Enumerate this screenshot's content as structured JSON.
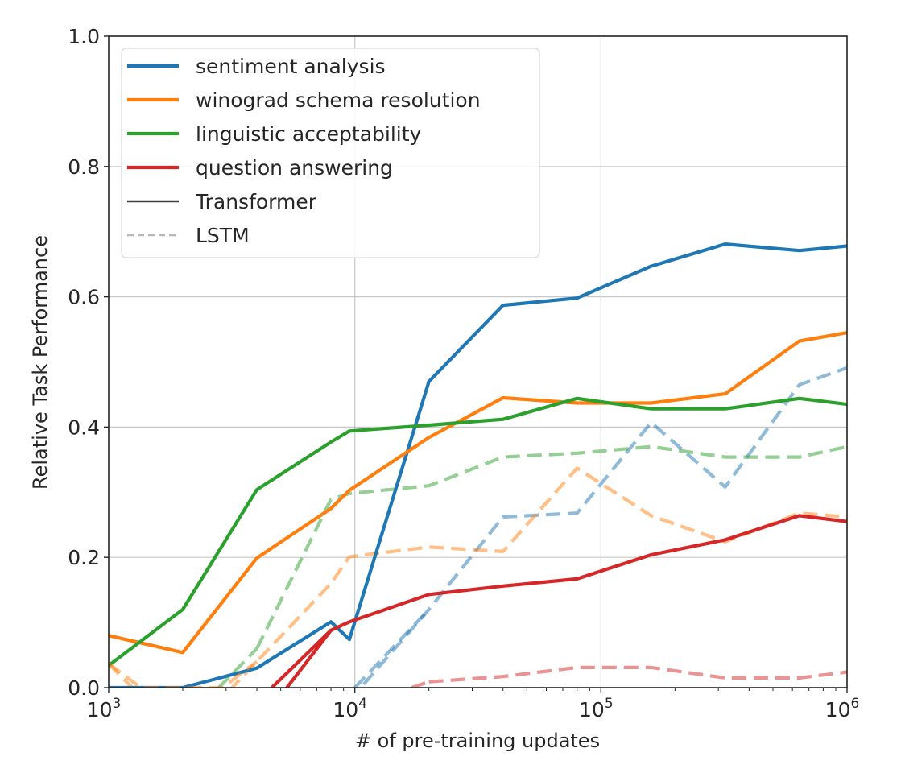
{
  "chart_data": {
    "type": "line",
    "title": "",
    "xlabel": "# of pre-training updates",
    "ylabel": "Relative Task Performance",
    "xscale": "log",
    "xlim": [
      1000,
      1000000
    ],
    "ylim": [
      0.0,
      1.0
    ],
    "grid": true,
    "legend_position": "upper left",
    "x_ticks": [
      {
        "value": 1000,
        "base": "10",
        "exp": "3"
      },
      {
        "value": 10000,
        "base": "10",
        "exp": "4"
      },
      {
        "value": 100000,
        "base": "10",
        "exp": "5"
      },
      {
        "value": 1000000,
        "base": "10",
        "exp": "6"
      }
    ],
    "y_ticks": [
      {
        "value": 0.0,
        "label": "0.0"
      },
      {
        "value": 0.2,
        "label": "0.2"
      },
      {
        "value": 0.4,
        "label": "0.4"
      },
      {
        "value": 0.6,
        "label": "0.6"
      },
      {
        "value": 0.8,
        "label": "0.8"
      },
      {
        "value": 1.0,
        "label": "1.0"
      }
    ],
    "x": [
      1000,
      2000,
      4000,
      8000,
      9500,
      20000,
      40000,
      80000,
      160000,
      320000,
      640000,
      1000000
    ],
    "series": [
      {
        "name": "sentiment analysis",
        "model": "Transformer",
        "color": "#1f77b4",
        "style": "solid",
        "values": [
          0.0,
          0.0,
          0.03,
          0.101,
          0.074,
          0.47,
          0.587,
          0.598,
          0.647,
          0.681,
          0.671,
          0.678
        ]
      },
      {
        "name": "winograd schema resolution",
        "model": "Transformer",
        "color": "#ff7f0e",
        "style": "solid",
        "values": [
          0.08,
          0.054,
          0.199,
          0.275,
          0.303,
          0.384,
          0.445,
          0.437,
          0.437,
          0.451,
          0.532,
          0.545
        ]
      },
      {
        "name": "linguistic acceptability",
        "model": "Transformer",
        "color": "#2ca02c",
        "style": "solid",
        "values": [
          0.034,
          0.12,
          0.304,
          0.377,
          0.394,
          0.403,
          0.412,
          0.444,
          0.428,
          0.428,
          0.444,
          0.435
        ]
      },
      {
        "name": "question answering",
        "model": "Transformer",
        "color": "#d62728",
        "style": "solid",
        "values": [
          null,
          null,
          -0.06,
          0.088,
          0.101,
          0.143,
          0.156,
          0.167,
          0.204,
          0.227,
          0.264,
          0.255
        ]
      },
      {
        "name": "sentiment analysis",
        "model": "LSTM",
        "color": "#1f77b4",
        "style": "dashed",
        "values": [
          null,
          null,
          null,
          null,
          -0.02,
          0.12,
          0.262,
          0.268,
          0.407,
          0.308,
          0.465,
          0.491
        ]
      },
      {
        "name": "winograd schema resolution",
        "model": "LSTM",
        "color": "#ff7f0e",
        "style": "dashed",
        "values": [
          0.037,
          -0.08,
          0.04,
          0.16,
          0.201,
          0.216,
          0.209,
          0.337,
          0.264,
          0.224,
          0.268,
          0.262
        ]
      },
      {
        "name": "linguistic acceptability",
        "model": "LSTM",
        "color": "#2ca02c",
        "style": "dashed",
        "values": [
          null,
          null,
          0.06,
          0.289,
          0.298,
          0.31,
          0.354,
          0.36,
          0.37,
          0.354,
          0.354,
          0.37
        ]
      },
      {
        "name": "question answering",
        "model": "LSTM",
        "color": "#d62728",
        "style": "dashed",
        "values": [
          null,
          null,
          null,
          null,
          null,
          0.009,
          0.017,
          0.031,
          0.031,
          0.015,
          0.015,
          0.024
        ]
      }
    ],
    "extra_segments": [
      {
        "series_index": 6,
        "x": [
          2800,
          4000
        ],
        "values": [
          0.0,
          0.06
        ]
      },
      {
        "series_index": 5,
        "x": [
          1000,
          1350,
          2900,
          4000
        ],
        "values": [
          0.037,
          0.0,
          0.0,
          0.04
        ]
      },
      {
        "series_index": 3,
        "x": [
          4600,
          8000
        ],
        "values": [
          0.0,
          0.088
        ]
      },
      {
        "series_index": 4,
        "x": [
          10000,
          20000
        ],
        "values": [
          0.0,
          0.12
        ]
      },
      {
        "series_index": 7,
        "x": [
          17000,
          20000
        ],
        "values": [
          0.0,
          0.009
        ]
      }
    ]
  },
  "legend": {
    "items": [
      {
        "label": "sentiment analysis",
        "color": "#1f77b4",
        "style": "solid"
      },
      {
        "label": "winograd schema resolution",
        "color": "#ff7f0e",
        "style": "solid"
      },
      {
        "label": "linguistic acceptability",
        "color": "#2ca02c",
        "style": "solid"
      },
      {
        "label": "question answering",
        "color": "#d62728",
        "style": "solid"
      },
      {
        "label": "Transformer",
        "color": "#404040",
        "style": "solid"
      },
      {
        "label": "LSTM",
        "color": "#a6a6a6",
        "style": "dashed"
      }
    ]
  }
}
